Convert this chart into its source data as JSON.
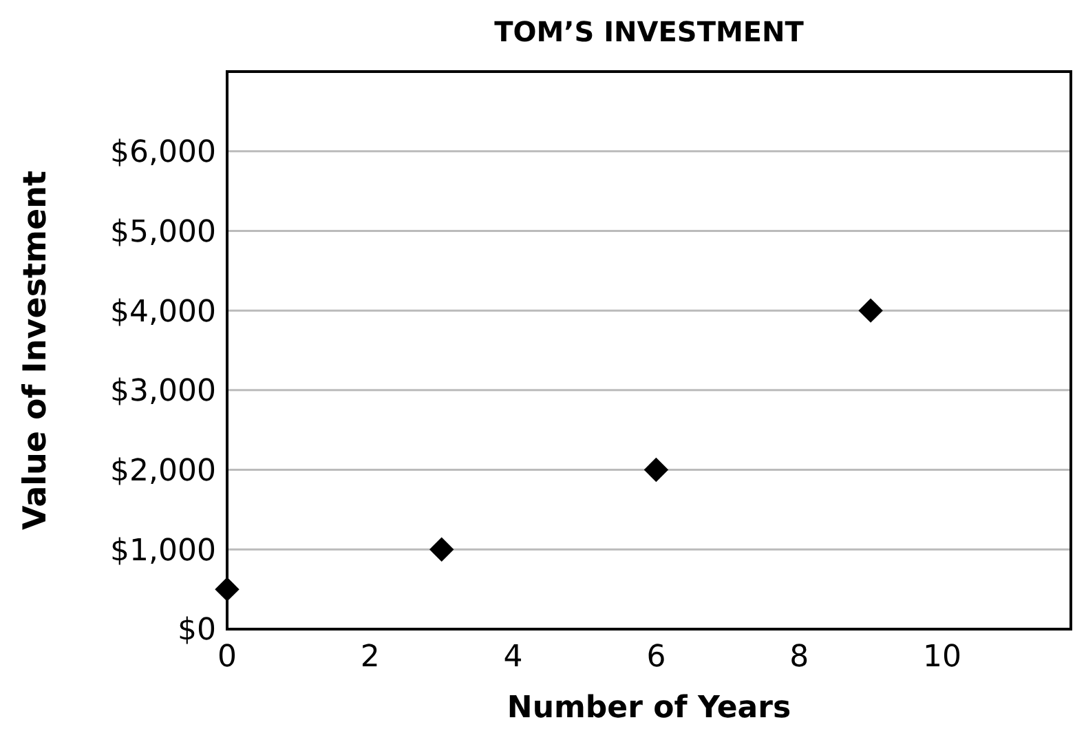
{
  "chart_data": {
    "type": "scatter",
    "title": "TOM’S INVESTMENT",
    "xlabel": "Number of Years",
    "ylabel": "Value of Investment",
    "x": [
      0,
      3,
      6,
      9
    ],
    "values": [
      500,
      1000,
      2000,
      4000
    ],
    "color": "#000000",
    "marker": "diamond",
    "xlim": [
      0,
      11.8
    ],
    "xticks": [
      0,
      2,
      4,
      6,
      8,
      10
    ],
    "ylim": [
      0,
      7000
    ],
    "yticks": [
      {
        "value": 0,
        "label": "$0"
      },
      {
        "value": 1000,
        "label": "$1,000"
      },
      {
        "value": 2000,
        "label": "$2,000"
      },
      {
        "value": 3000,
        "label": "$3,000"
      },
      {
        "value": 4000,
        "label": "$4,000"
      },
      {
        "value": 5000,
        "label": "$5,000"
      },
      {
        "value": 6000,
        "label": "$6,000"
      }
    ],
    "grid": "y"
  }
}
